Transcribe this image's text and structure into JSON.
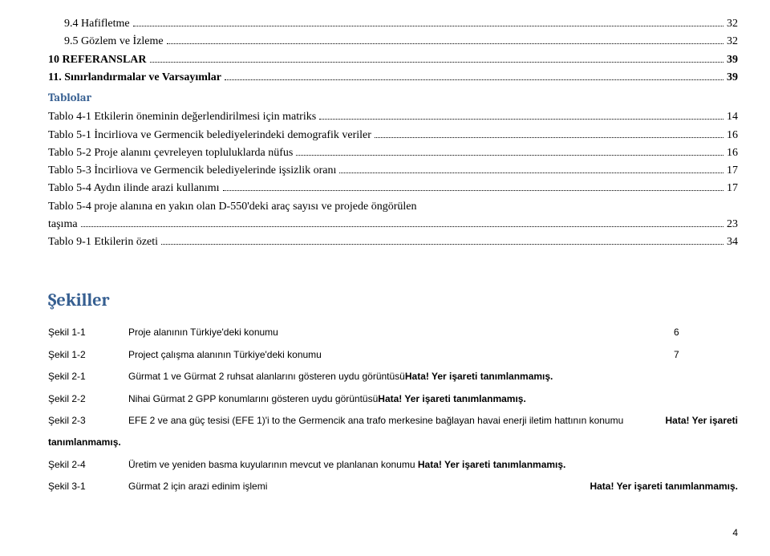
{
  "toc": [
    {
      "label": "9.4 Hafifletme",
      "page": "32",
      "indent": 1,
      "bold": false
    },
    {
      "label": "9.5   Gözlem ve İzleme",
      "page": "32",
      "indent": 1,
      "bold": false
    },
    {
      "label": "10   REFERANSLAR",
      "page": "39",
      "indent": 0,
      "bold": true
    },
    {
      "label": "11.   Sınırlandırmalar ve Varsayımlar",
      "page": "39",
      "indent": 0,
      "bold": true
    }
  ],
  "tablolar_heading": "Tablolar",
  "tablolar": [
    {
      "label": "Tablo 4-1 Etkilerin öneminin değerlendirilmesi için matriks",
      "page": "14"
    },
    {
      "label": "Tablo 5-1  İncirliova ve Germencik belediyelerindeki demografik veriler",
      "page": "16"
    },
    {
      "label": "Tablo 5-2 Proje alanını çevreleyen topluluklarda nüfus",
      "page": "16"
    },
    {
      "label": "Tablo 5-3 İncirliova ve Germencik belediyelerinde işsizlik oranı",
      "page": "17"
    },
    {
      "label": "Tablo 5-4  Aydın ilinde arazi kullanımı",
      "page": "17"
    },
    {
      "label": "Tablo 5-4 proje alanına en yakın olan D-550'deki araç sayısı ve projede öngörülen",
      "wrap": true
    },
    {
      "label": "taşıma",
      "page": "23"
    },
    {
      "label": "Tablo 9-1 Etkilerin özeti",
      "page": "34"
    }
  ],
  "sekiller_heading": "Şekiller",
  "figures": [
    {
      "label": "Şekil 1-1",
      "text": "Proje alanının Türkiye'deki konumu",
      "page": "6"
    },
    {
      "label": "Şekil 1-2",
      "text": "Project çalışma alanının Türkiye'deki konumu",
      "page": "7"
    },
    {
      "label": "Şekil 2-1",
      "text": "Gürmat 1 ve Gürmat 2 ruhsat alanlarını gösteren uydu görüntüsü",
      "bold_after": "Hata! Yer işareti tanımlanmamış."
    },
    {
      "label": "Şekil 2-2",
      "text": "Nihai Gürmat 2 GPP konumlarını gösteren uydu görüntüsü",
      "bold_after": "Hata! Yer işareti tanımlanmamış."
    },
    {
      "label": "Şekil 2-3",
      "text": "EFE 2 ve ana güç tesisi (EFE 1)'i  to the Germencik ana trafo merkesine bağlayan havai enerji iletim hattının konumu",
      "trail": "Hata! Yer işareti",
      "wrap_label": "tanımlanmamış."
    },
    {
      "label": "Şekil 2-4",
      "text": "Üretim ve yeniden basma kuyularının mevcut ve planlanan konumu ",
      "bold_inline": "Hata! Yer işareti tanımlanmamış."
    },
    {
      "label": "Şekil 3-1",
      "text": "Gürmat 2 için arazi edinim işlemi",
      "page_bold": "Hata! Yer işareti tanımlanmamış."
    }
  ],
  "page_number": "4"
}
